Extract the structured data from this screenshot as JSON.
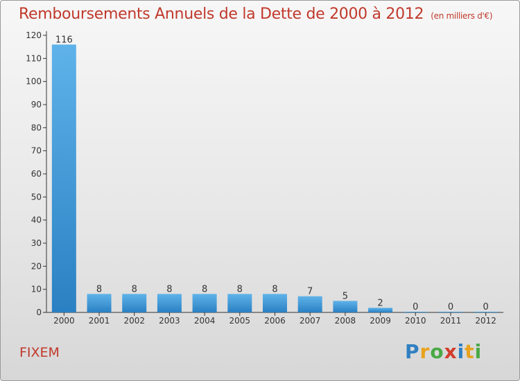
{
  "title": "Remboursements Annuels de la Dette de 2000 à 2012",
  "subtitle": "(en milliers d'€)",
  "commune": "FIXEM",
  "logo": {
    "letters": [
      "P",
      "r",
      "o",
      "x",
      "i",
      "t",
      "i"
    ],
    "colors": [
      "#2f7fc1",
      "#e8a21c",
      "#4aa845",
      "#d23c2c",
      "#2f7fc1",
      "#e8a21c",
      "#4aa845"
    ]
  },
  "colors": {
    "bar_top": "#5fb3ea",
    "bar_bottom": "#2a80c2",
    "axis": "#333333",
    "title": "#c0392b"
  },
  "chart_data": {
    "type": "bar",
    "title": "Remboursements Annuels de la Dette de 2000 à 2012",
    "ylabel": "(en milliers d'€)",
    "xlabel": "",
    "categories": [
      "2000",
      "2001",
      "2002",
      "2003",
      "2004",
      "2005",
      "2006",
      "2007",
      "2008",
      "2009",
      "2010",
      "2011",
      "2012"
    ],
    "values": [
      116,
      8,
      8,
      8,
      8,
      8,
      8,
      7,
      5,
      2,
      0,
      0,
      0
    ],
    "value_labels": [
      "116",
      "8",
      "8",
      "8",
      "8",
      "8",
      "8",
      "7",
      "5",
      "2",
      "0",
      "0",
      "0"
    ],
    "ylim": [
      0,
      120
    ],
    "yticks": [
      0,
      10,
      20,
      30,
      40,
      50,
      60,
      70,
      80,
      90,
      100,
      110,
      120
    ],
    "ytick_labels": [
      "0",
      "10",
      "20",
      "30",
      "40",
      "50",
      "60",
      "70",
      "80",
      "90",
      "100",
      "110",
      "120"
    ]
  }
}
